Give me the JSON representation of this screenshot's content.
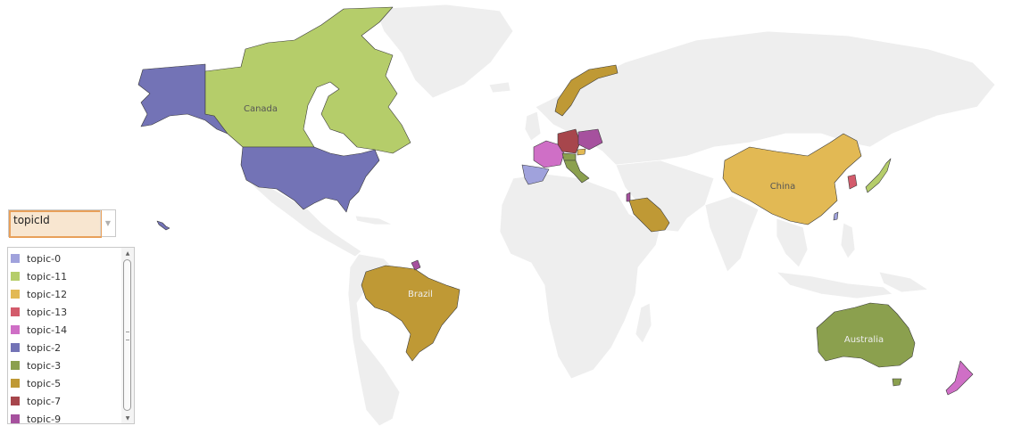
{
  "selector": {
    "value": "topicId"
  },
  "legend": {
    "items": [
      {
        "label": "topic-0",
        "color": "#a0a2dc"
      },
      {
        "label": "topic-11",
        "color": "#b5cd6a"
      },
      {
        "label": "topic-12",
        "color": "#e2b954"
      },
      {
        "label": "topic-13",
        "color": "#d35b6b"
      },
      {
        "label": "topic-14",
        "color": "#cf6fc6"
      },
      {
        "label": "topic-2",
        "color": "#7373b6"
      },
      {
        "label": "topic-3",
        "color": "#8ba04e"
      },
      {
        "label": "topic-5",
        "color": "#bf9935"
      },
      {
        "label": "topic-7",
        "color": "#a7464c"
      },
      {
        "label": "topic-9",
        "color": "#a6519e"
      }
    ]
  },
  "map": {
    "labels": {
      "canada": "Canada",
      "china": "China",
      "brazil": "Brazil",
      "australia": "Australia"
    },
    "colors": {
      "land": "#eeeeee",
      "topic-0": "#a0a2dc",
      "topic-11": "#b5cd6a",
      "topic-12": "#e2b954",
      "topic-13": "#d35b6b",
      "topic-14": "#cf6fc6",
      "topic-2": "#7373b6",
      "topic-3": "#8ba04e",
      "topic-5": "#bf9935",
      "topic-7": "#a7464c",
      "topic-9": "#a6519e"
    },
    "country_topics": {
      "usa": "topic-2",
      "alaska": "topic-2",
      "canada": "topic-11",
      "japan": "topic-11",
      "china": "topic-12",
      "switzerland": "topic-12",
      "south-korea": "topic-13",
      "france": "topic-14",
      "new-zealand": "topic-14",
      "spain": "topic-0",
      "taiwan": "topic-0",
      "italy": "topic-3",
      "australia": "topic-3",
      "austria": "topic-3",
      "brazil": "topic-5",
      "norway": "topic-5",
      "saudi-arabia": "topic-5",
      "germany": "topic-7",
      "poland": "topic-9",
      "french-guiana": "topic-9",
      "israel": "topic-9"
    }
  }
}
